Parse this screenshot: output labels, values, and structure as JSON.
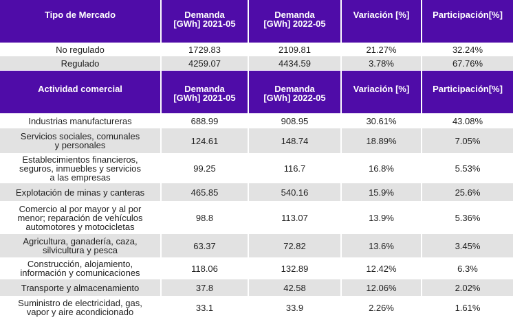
{
  "market_header": {
    "col1": "Tipo de Mercado",
    "col2": "Demanda\n[GWh] 2021-05",
    "col3": "Demanda\n[GWh] 2022-05",
    "col4": "Variación [%]",
    "col5": "Participación[%]"
  },
  "market_rows": [
    {
      "name": "No regulado",
      "d2021": "1729.83",
      "d2022": "2109.81",
      "var": "21.27%",
      "part": "32.24%"
    },
    {
      "name": "Regulado",
      "d2021": "4259.07",
      "d2022": "4434.59",
      "var": "3.78%",
      "part": "67.76%"
    }
  ],
  "activity_header": {
    "col1": "Actividad comercial",
    "col2": "Demanda\n[GWh] 2021-05",
    "col3": "Demanda\n[GWh] 2022-05",
    "col4": "Variación [%]",
    "col5": "Participación[%]"
  },
  "activity_rows": [
    {
      "name": "Industrias manufactureras",
      "d2021": "688.99",
      "d2022": "908.95",
      "var": "30.61%",
      "part": "43.08%"
    },
    {
      "name": "Servicios sociales, comunales\ny personales",
      "d2021": "124.61",
      "d2022": "148.74",
      "var": "18.89%",
      "part": "7.05%"
    },
    {
      "name": "Establecimientos financieros,\nseguros, inmuebles y servicios\na las empresas",
      "d2021": "99.25",
      "d2022": "116.7",
      "var": "16.8%",
      "part": "5.53%"
    },
    {
      "name": "Explotación de minas y canteras",
      "d2021": "465.85",
      "d2022": "540.16",
      "var": "15.9%",
      "part": "25.6%"
    },
    {
      "name": "Comercio al por mayor y al por\nmenor; reparación de vehículos\nautomotores y motocicletas",
      "d2021": "98.8",
      "d2022": "113.07",
      "var": "13.9%",
      "part": "5.36%"
    },
    {
      "name": "Agricultura, ganadería, caza,\nsilvicultura y pesca",
      "d2021": "63.37",
      "d2022": "72.82",
      "var": "13.6%",
      "part": "3.45%"
    },
    {
      "name": "Construcción, alojamiento,\ninformación y comunicaciones",
      "d2021": "118.06",
      "d2022": "132.89",
      "var": "12.42%",
      "part": "6.3%"
    },
    {
      "name": "Transporte y almacenamiento",
      "d2021": "37.8",
      "d2022": "42.58",
      "var": "12.06%",
      "part": "2.02%"
    },
    {
      "name": "Suministro de electricidad, gas,\nvapor y aire acondicionado",
      "d2021": "33.1",
      "d2022": "33.9",
      "var": "2.26%",
      "part": "1.61%"
    }
  ]
}
